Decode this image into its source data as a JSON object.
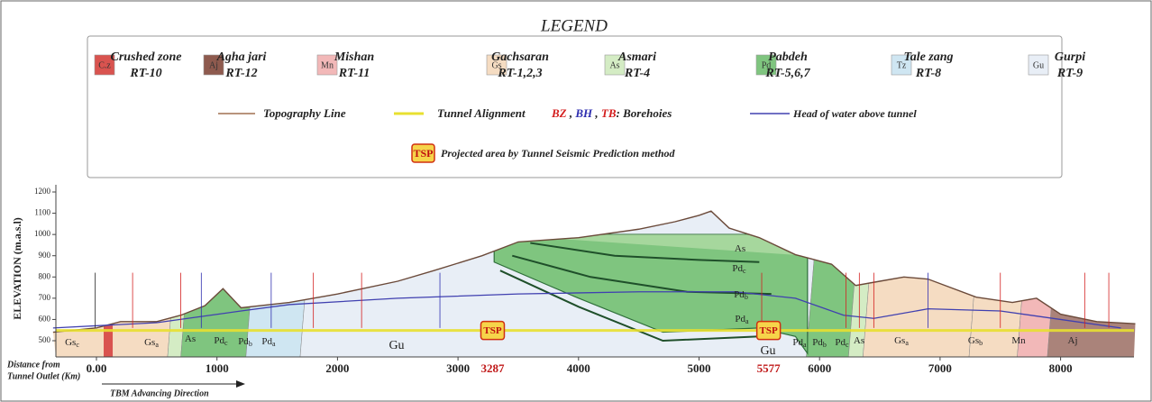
{
  "legend": {
    "title": "LEGEND",
    "units": [
      {
        "code": "C.z",
        "name": "Crushed zone",
        "rt": "RT-10",
        "color": "#d9534f"
      },
      {
        "code": "Aj",
        "name": "Agha jari",
        "rt": "RT-12",
        "color": "#8e5a4e"
      },
      {
        "code": "Mn",
        "name": "Mishan",
        "rt": "RT-11",
        "color": "#f2b8b8"
      },
      {
        "code": "Gs",
        "name": "Gachsaran",
        "rt": "RT-1,2,3",
        "color": "#f5dcc2"
      },
      {
        "code": "As",
        "name": "Asmari",
        "rt": "RT-4",
        "color": "#d4ecc4"
      },
      {
        "code": "Pd",
        "name": "Pabdeh",
        "rt": "RT-5,6,7",
        "color": "#7fc57f"
      },
      {
        "code": "Tz",
        "name": "Tale zang",
        "rt": "RT-8",
        "color": "#cfe6f2"
      },
      {
        "code": "Gu",
        "name": "Gurpi",
        "rt": "RT-9",
        "color": "#e8eef6"
      }
    ],
    "topography": "Topography Line",
    "tunnel": "Tunnel Alignment",
    "boreholes": [
      {
        "text": "BZ",
        "color": "#d42020"
      },
      {
        "text": " , ",
        "color": "#222222"
      },
      {
        "text": "BH",
        "color": "#3030b0"
      },
      {
        "text": " , ",
        "color": "#222222"
      },
      {
        "text": "TB",
        "color": "#d42020"
      },
      {
        "text": ": Borehoies",
        "color": "#222222"
      }
    ],
    "water": "Head of water above tunnel",
    "tsp_code": "TSP",
    "tsp_text": "Projected area by Tunnel Seismic Prediction method"
  },
  "profile": {
    "y_label": "ELEVATION (m.a.s.l)",
    "x_label": [
      "Distance from",
      "Tunnel Outlet (Km)"
    ],
    "direction": "TBM Advancing  Direction",
    "xticks": [
      {
        "value": 0,
        "label": "0.00"
      },
      1000,
      2000,
      3000,
      4000,
      5000,
      6000,
      7000,
      8000
    ],
    "yticks": [
      500,
      600,
      700,
      800,
      900,
      1000,
      1100,
      1200
    ],
    "tsp_marks": [
      3287,
      5577
    ],
    "tsp_label": "TSP",
    "regions": [
      {
        "base": "Gs",
        "sub": "c"
      },
      {
        "base": "Gs",
        "sub": "a"
      },
      {
        "base": "As",
        "sub": ""
      },
      {
        "base": "Pd",
        "sub": "c"
      },
      {
        "base": "Pd",
        "sub": "b"
      },
      {
        "base": "Pd",
        "sub": "a"
      },
      {
        "base": "Gu",
        "sub": ""
      },
      {
        "base": "As",
        "sub": ""
      },
      {
        "base": "Pd",
        "sub": "c"
      },
      {
        "base": "Pd",
        "sub": "b"
      },
      {
        "base": "Pd",
        "sub": "a"
      },
      {
        "base": "Gu",
        "sub": ""
      },
      {
        "base": "Pd",
        "sub": "a"
      },
      {
        "base": "Pd",
        "sub": "b"
      },
      {
        "base": "Pd",
        "sub": "c"
      },
      {
        "base": "As",
        "sub": ""
      },
      {
        "base": "Gs",
        "sub": "a"
      },
      {
        "base": "Gs",
        "sub": "b"
      },
      {
        "base": "Mn",
        "sub": ""
      },
      {
        "base": "Aj",
        "sub": ""
      }
    ]
  }
}
